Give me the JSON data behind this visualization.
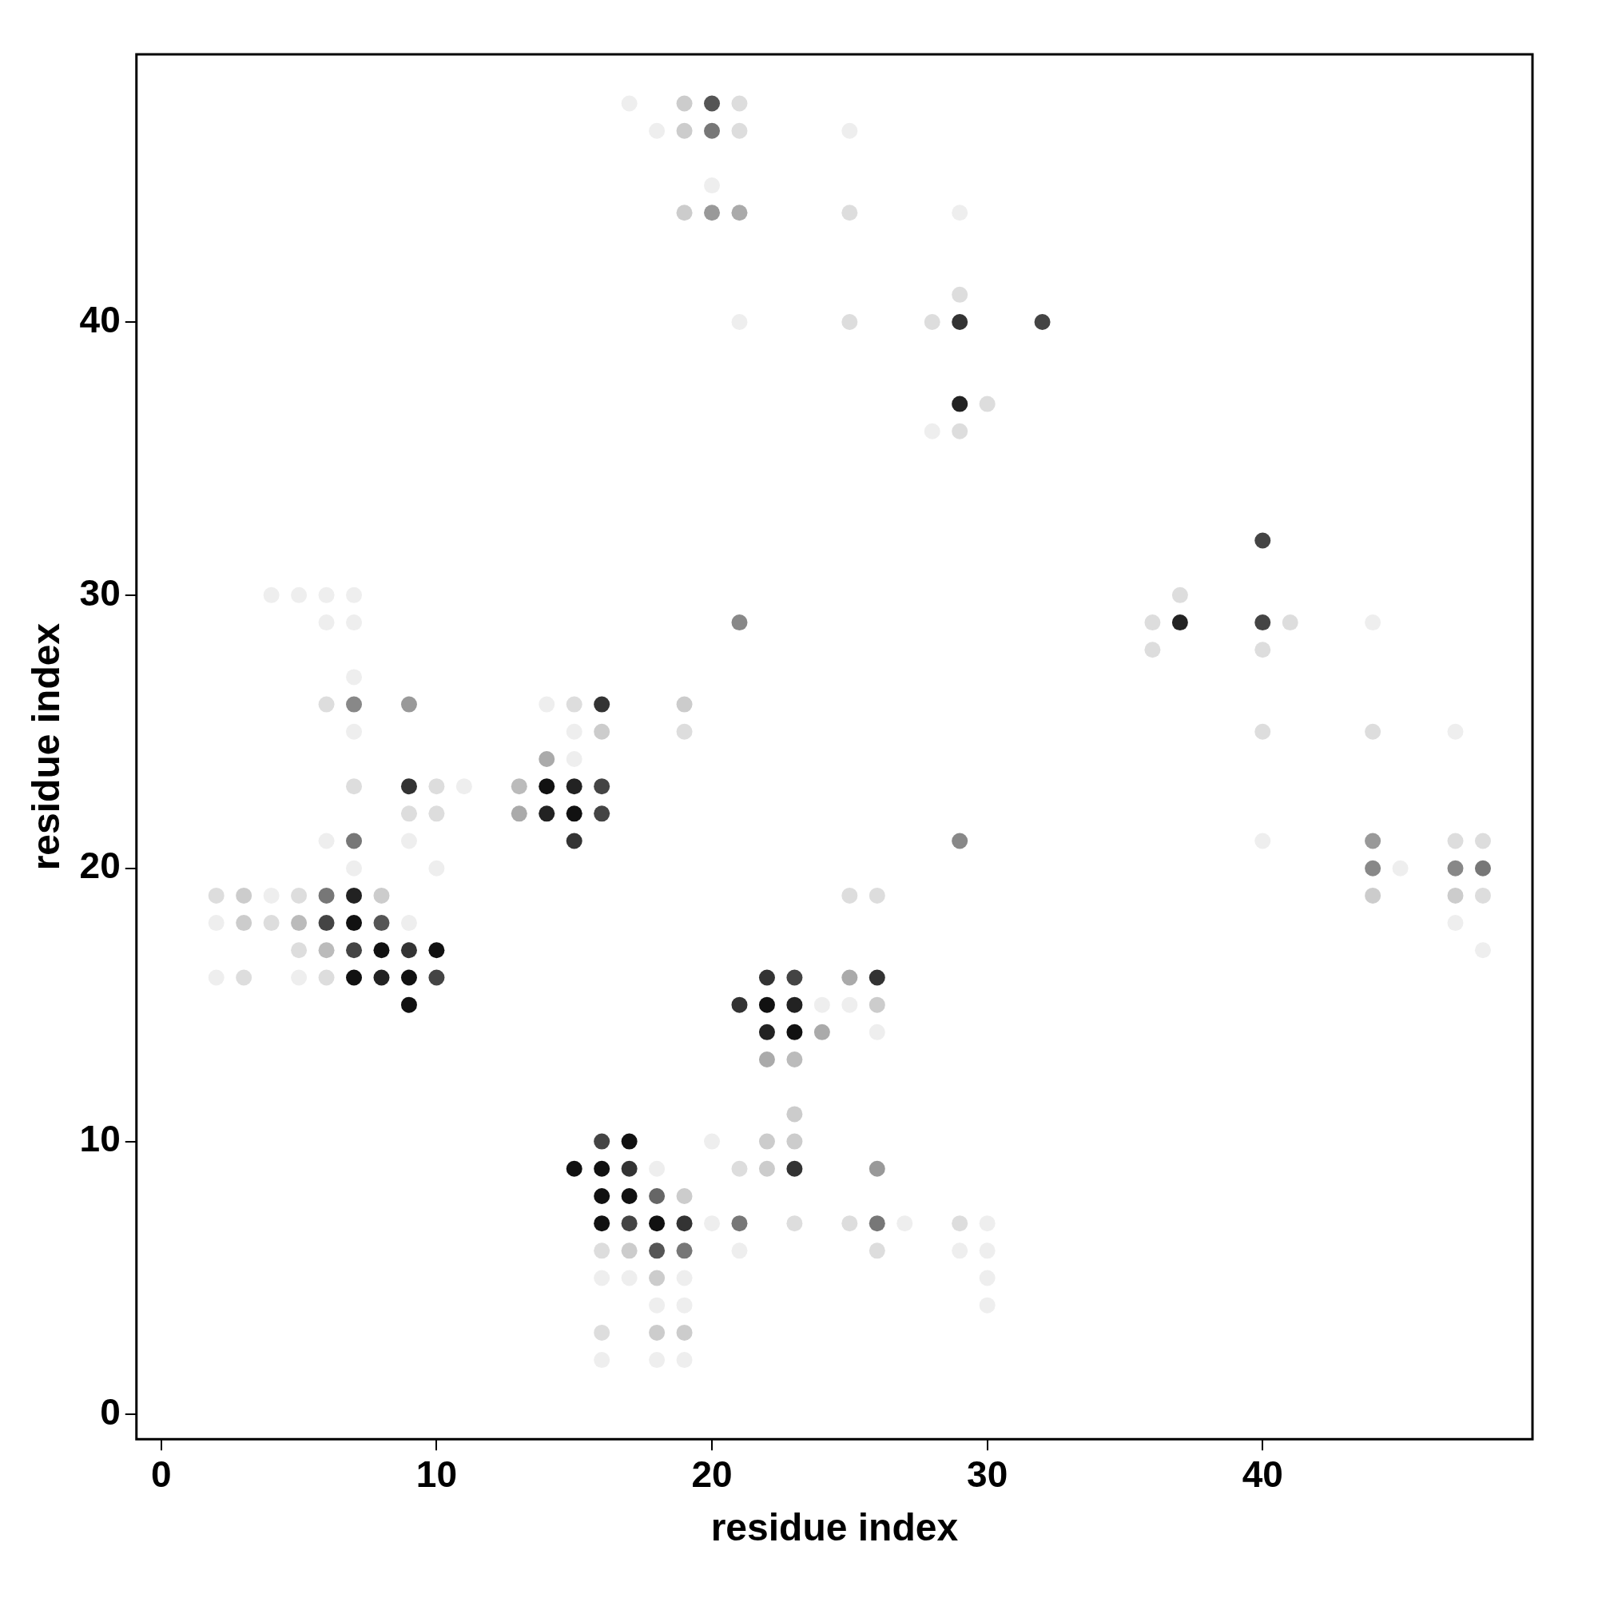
{
  "chart_data": {
    "type": "scatter",
    "xlabel": "residue index",
    "ylabel": "residue index",
    "xlim": [
      -0.9,
      49.8
    ],
    "ylim": [
      -0.9,
      49.8
    ],
    "xticks": [
      0,
      10,
      20,
      30,
      40
    ],
    "yticks": [
      0,
      10,
      20,
      30,
      40
    ],
    "marker": "circle",
    "series": [
      {
        "x": [
          17,
          19,
          20,
          21,
          18,
          19,
          20,
          21,
          25,
          20,
          19,
          20,
          21,
          25,
          29,
          29,
          21,
          25,
          28,
          29,
          32,
          29,
          30,
          28,
          29,
          40,
          4,
          5,
          6,
          7,
          37,
          6,
          7,
          21,
          36,
          37,
          40,
          41,
          44,
          36,
          40,
          7,
          6,
          7,
          9,
          14,
          15,
          16,
          19,
          7,
          15,
          16,
          19,
          40,
          44,
          47,
          14,
          15,
          7,
          9,
          10,
          11,
          13,
          14,
          15,
          16,
          9,
          10,
          13,
          14,
          15,
          16,
          6,
          7,
          9,
          15,
          29,
          40,
          44,
          47,
          48,
          7,
          10,
          44,
          45,
          47,
          48,
          2,
          3,
          4,
          5,
          6,
          7,
          8,
          25,
          26,
          44,
          47,
          48,
          2,
          3,
          4,
          5,
          6,
          7,
          8,
          9,
          47,
          5,
          6,
          7,
          8,
          9,
          10,
          48,
          2,
          3,
          5,
          6,
          7,
          8,
          9,
          10,
          22,
          23,
          25,
          26,
          9,
          21,
          22,
          23,
          24,
          25,
          26,
          22,
          23,
          24,
          26,
          22,
          23,
          23,
          16,
          17,
          20,
          22,
          23,
          15,
          16,
          17,
          18,
          21,
          22,
          23,
          26,
          16,
          17,
          18,
          19,
          16,
          17,
          18,
          19,
          20,
          21,
          23,
          25,
          26,
          27,
          29,
          30,
          16,
          17,
          18,
          19,
          21,
          26,
          29,
          30,
          16,
          17,
          18,
          19,
          30,
          18,
          19,
          30,
          16,
          18,
          19,
          16,
          18,
          19
        ],
        "values": [
          48,
          48,
          48,
          48,
          47,
          47,
          47,
          47,
          47,
          45,
          44,
          44,
          44,
          44,
          44,
          41,
          40,
          40,
          40,
          40,
          40,
          37,
          37,
          36,
          36,
          32,
          30,
          30,
          30,
          30,
          30,
          29,
          29,
          29,
          29,
          29,
          29,
          29,
          29,
          28,
          28,
          27,
          26,
          26,
          26,
          26,
          26,
          26,
          26,
          25,
          25,
          25,
          25,
          25,
          25,
          25,
          24,
          24,
          23,
          23,
          23,
          23,
          23,
          23,
          23,
          23,
          22,
          22,
          22,
          22,
          22,
          22,
          21,
          21,
          21,
          21,
          21,
          21,
          21,
          21,
          21,
          20,
          20,
          20,
          20,
          20,
          20,
          19,
          19,
          19,
          19,
          19,
          19,
          19,
          19,
          19,
          19,
          19,
          19,
          18,
          18,
          18,
          18,
          18,
          18,
          18,
          18,
          18,
          17,
          17,
          17,
          17,
          17,
          17,
          17,
          16,
          16,
          16,
          16,
          16,
          16,
          16,
          16,
          16,
          16,
          16,
          16,
          15,
          15,
          15,
          15,
          15,
          15,
          15,
          14,
          14,
          14,
          14,
          13,
          13,
          11,
          10,
          10,
          10,
          10,
          10,
          9,
          9,
          9,
          9,
          9,
          9,
          9,
          9,
          8,
          8,
          8,
          8,
          7,
          7,
          7,
          7,
          7,
          7,
          7,
          7,
          7,
          7,
          7,
          7,
          6,
          6,
          6,
          6,
          6,
          6,
          6,
          6,
          5,
          5,
          5,
          5,
          5,
          4,
          4,
          4,
          3,
          3,
          3,
          2,
          2,
          2
        ],
        "colors": [
          "#eeeeee",
          "#cccccc",
          "#555555",
          "#dddddd",
          "#eeeeee",
          "#cccccc",
          "#777777",
          "#dddddd",
          "#eeeeee",
          "#eeeeee",
          "#cccccc",
          "#999999",
          "#aaaaaa",
          "#dddddd",
          "#eeeeee",
          "#dddddd",
          "#eeeeee",
          "#dddddd",
          "#dddddd",
          "#333333",
          "#444444",
          "#222222",
          "#dddddd",
          "#eeeeee",
          "#dddddd",
          "#444444",
          "#eeeeee",
          "#eeeeee",
          "#eeeeee",
          "#eeeeee",
          "#dddddd",
          "#eeeeee",
          "#eeeeee",
          "#888888",
          "#dddddd",
          "#222222",
          "#444444",
          "#dddddd",
          "#eeeeee",
          "#dddddd",
          "#dddddd",
          "#eeeeee",
          "#dddddd",
          "#888888",
          "#999999",
          "#eeeeee",
          "#dddddd",
          "#333333",
          "#cccccc",
          "#eeeeee",
          "#eeeeee",
          "#cccccc",
          "#dddddd",
          "#dddddd",
          "#dddddd",
          "#eeeeee",
          "#aaaaaa",
          "#eeeeee",
          "#dddddd",
          "#333333",
          "#dddddd",
          "#eeeeee",
          "#bbbbbb",
          "#111111",
          "#222222",
          "#444444",
          "#dddddd",
          "#dddddd",
          "#aaaaaa",
          "#222222",
          "#111111",
          "#444444",
          "#eeeeee",
          "#777777",
          "#eeeeee",
          "#333333",
          "#888888",
          "#eeeeee",
          "#999999",
          "#dddddd",
          "#dddddd",
          "#eeeeee",
          "#eeeeee",
          "#888888",
          "#eeeeee",
          "#888888",
          "#777777",
          "#dddddd",
          "#cccccc",
          "#eeeeee",
          "#dddddd",
          "#777777",
          "#222222",
          "#cccccc",
          "#dddddd",
          "#dddddd",
          "#cccccc",
          "#cccccc",
          "#dddddd",
          "#eeeeee",
          "#cccccc",
          "#dddddd",
          "#bbbbbb",
          "#444444",
          "#111111",
          "#555555",
          "#eeeeee",
          "#eeeeee",
          "#dddddd",
          "#bbbbbb",
          "#444444",
          "#111111",
          "#333333",
          "#111111",
          "#eeeeee",
          "#eeeeee",
          "#dddddd",
          "#eeeeee",
          "#dddddd",
          "#111111",
          "#222222",
          "#111111",
          "#444444",
          "#333333",
          "#444444",
          "#aaaaaa",
          "#333333",
          "#111111",
          "#333333",
          "#111111",
          "#222222",
          "#eeeeee",
          "#eeeeee",
          "#cccccc",
          "#222222",
          "#111111",
          "#aaaaaa",
          "#eeeeee",
          "#aaaaaa",
          "#bbbbbb",
          "#cccccc",
          "#444444",
          "#111111",
          "#eeeeee",
          "#cccccc",
          "#cccccc",
          "#111111",
          "#111111",
          "#333333",
          "#eeeeee",
          "#dddddd",
          "#cccccc",
          "#333333",
          "#999999",
          "#111111",
          "#111111",
          "#666666",
          "#cccccc",
          "#111111",
          "#444444",
          "#111111",
          "#333333",
          "#eeeeee",
          "#777777",
          "#dddddd",
          "#dddddd",
          "#777777",
          "#eeeeee",
          "#dddddd",
          "#eeeeee",
          "#dddddd",
          "#cccccc",
          "#555555",
          "#777777",
          "#eeeeee",
          "#dddddd",
          "#eeeeee",
          "#eeeeee",
          "#eeeeee",
          "#eeeeee",
          "#cccccc",
          "#eeeeee",
          "#eeeeee",
          "#eeeeee",
          "#eeeeee",
          "#eeeeee",
          "#dddddd",
          "#cccccc",
          "#cccccc",
          "#eeeeee",
          "#eeeeee",
          "#eeeeee"
        ]
      }
    ]
  }
}
